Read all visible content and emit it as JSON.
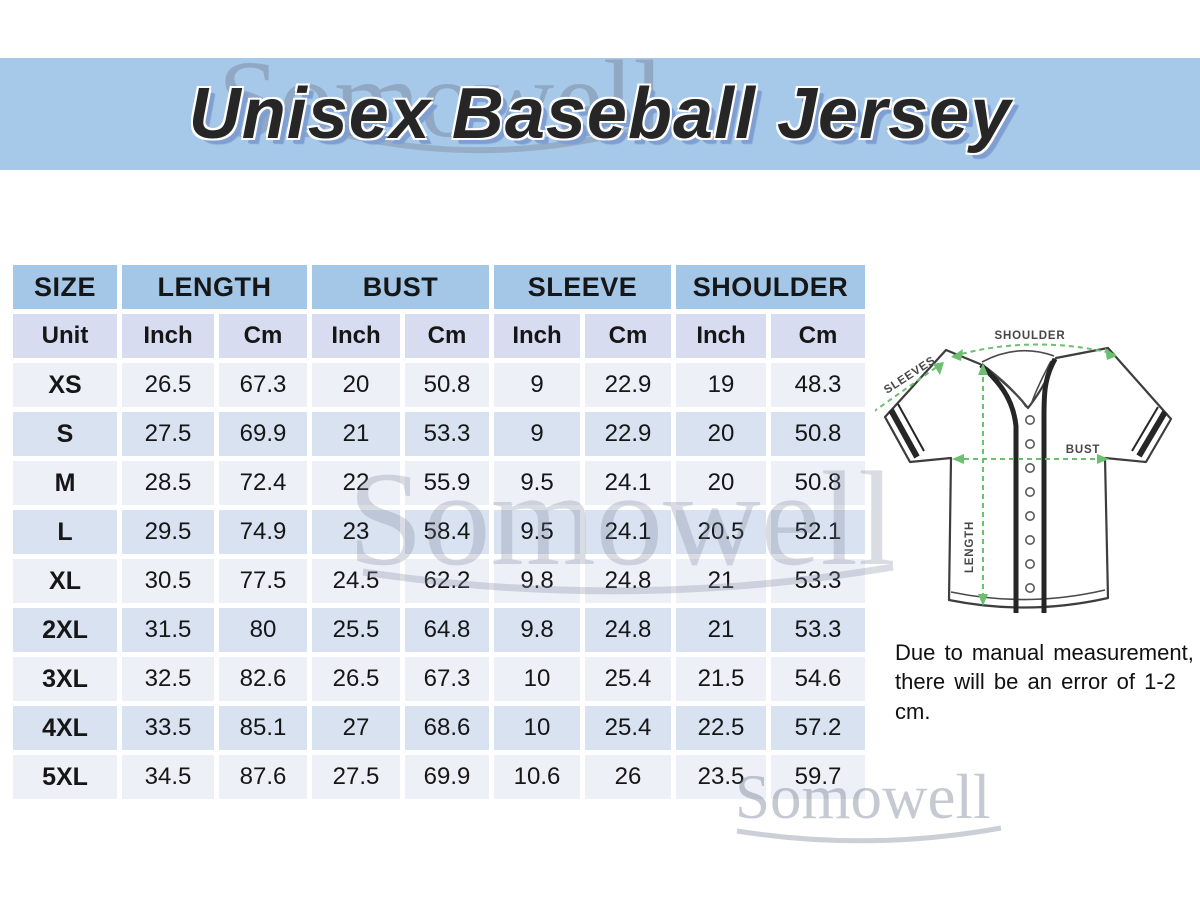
{
  "title": "Unisex Baseball Jersey",
  "watermark": {
    "text": "Somowell"
  },
  "table": {
    "column_groups": [
      {
        "label": "SIZE",
        "span": 1
      },
      {
        "label": "LENGTH",
        "span": 2
      },
      {
        "label": "BUST",
        "span": 2
      },
      {
        "label": "SLEEVE",
        "span": 2
      },
      {
        "label": "SHOULDER",
        "span": 2
      }
    ],
    "unit_row": [
      "Unit",
      "Inch",
      "Cm",
      "Inch",
      "Cm",
      "Inch",
      "Cm",
      "Inch",
      "Cm"
    ],
    "rows": [
      {
        "size": "XS",
        "values": [
          "26.5",
          "67.3",
          "20",
          "50.8",
          "9",
          "22.9",
          "19",
          "48.3"
        ]
      },
      {
        "size": "S",
        "values": [
          "27.5",
          "69.9",
          "21",
          "53.3",
          "9",
          "22.9",
          "20",
          "50.8"
        ]
      },
      {
        "size": "M",
        "values": [
          "28.5",
          "72.4",
          "22",
          "55.9",
          "9.5",
          "24.1",
          "20",
          "50.8"
        ]
      },
      {
        "size": "L",
        "values": [
          "29.5",
          "74.9",
          "23",
          "58.4",
          "9.5",
          "24.1",
          "20.5",
          "52.1"
        ]
      },
      {
        "size": "XL",
        "values": [
          "30.5",
          "77.5",
          "24.5",
          "62.2",
          "9.8",
          "24.8",
          "21",
          "53.3"
        ]
      },
      {
        "size": "2XL",
        "values": [
          "31.5",
          "80",
          "25.5",
          "64.8",
          "9.8",
          "24.8",
          "21",
          "53.3"
        ]
      },
      {
        "size": "3XL",
        "values": [
          "32.5",
          "82.6",
          "26.5",
          "67.3",
          "10",
          "25.4",
          "21.5",
          "54.6"
        ]
      },
      {
        "size": "4XL",
        "values": [
          "33.5",
          "85.1",
          "27",
          "68.6",
          "10",
          "25.4",
          "22.5",
          "57.2"
        ]
      },
      {
        "size": "5XL",
        "values": [
          "34.5",
          "87.6",
          "27.5",
          "69.9",
          "10.6",
          "26",
          "23.5",
          "59.7"
        ]
      }
    ]
  },
  "diagram": {
    "shoulder": "SHOULDER",
    "sleeves": "SLEEVES",
    "bust": "BUST",
    "length": "LENGTH"
  },
  "note": {
    "line1": "Due to manual measurement,",
    "line2": "there will be an error of 1-2 cm."
  },
  "colors": {
    "banner": "#a7c9e9",
    "table_header": "#a4c6e7",
    "unit_row": "#d7dcf0",
    "row_light": "#eef0f8",
    "row_dark": "#d8e2f1",
    "title_shadow": "#7f9fd2",
    "measure_green": "#6bbf6f",
    "outline_gray": "#3d3d3d"
  },
  "chart_data": {
    "type": "table",
    "title": "Unisex Baseball Jersey",
    "columns": [
      "SIZE",
      "LENGTH Inch",
      "LENGTH Cm",
      "BUST Inch",
      "BUST Cm",
      "SLEEVE Inch",
      "SLEEVE Cm",
      "SHOULDER Inch",
      "SHOULDER Cm"
    ],
    "rows": [
      [
        "XS",
        26.5,
        67.3,
        20,
        50.8,
        9,
        22.9,
        19,
        48.3
      ],
      [
        "S",
        27.5,
        69.9,
        21,
        53.3,
        9,
        22.9,
        20,
        50.8
      ],
      [
        "M",
        28.5,
        72.4,
        22,
        55.9,
        9.5,
        24.1,
        20,
        50.8
      ],
      [
        "L",
        29.5,
        74.9,
        23,
        58.4,
        9.5,
        24.1,
        20.5,
        52.1
      ],
      [
        "XL",
        30.5,
        77.5,
        24.5,
        62.2,
        9.8,
        24.8,
        21,
        53.3
      ],
      [
        "2XL",
        31.5,
        80,
        25.5,
        64.8,
        9.8,
        24.8,
        21,
        53.3
      ],
      [
        "3XL",
        32.5,
        82.6,
        26.5,
        67.3,
        10,
        25.4,
        21.5,
        54.6
      ],
      [
        "4XL",
        33.5,
        85.1,
        27,
        68.6,
        10,
        25.4,
        22.5,
        57.2
      ],
      [
        "5XL",
        34.5,
        87.6,
        27.5,
        69.9,
        10.6,
        26,
        23.5,
        59.7
      ]
    ],
    "annotations": [
      "Due to manual measurement, there will be an error of 1-2 cm."
    ]
  }
}
